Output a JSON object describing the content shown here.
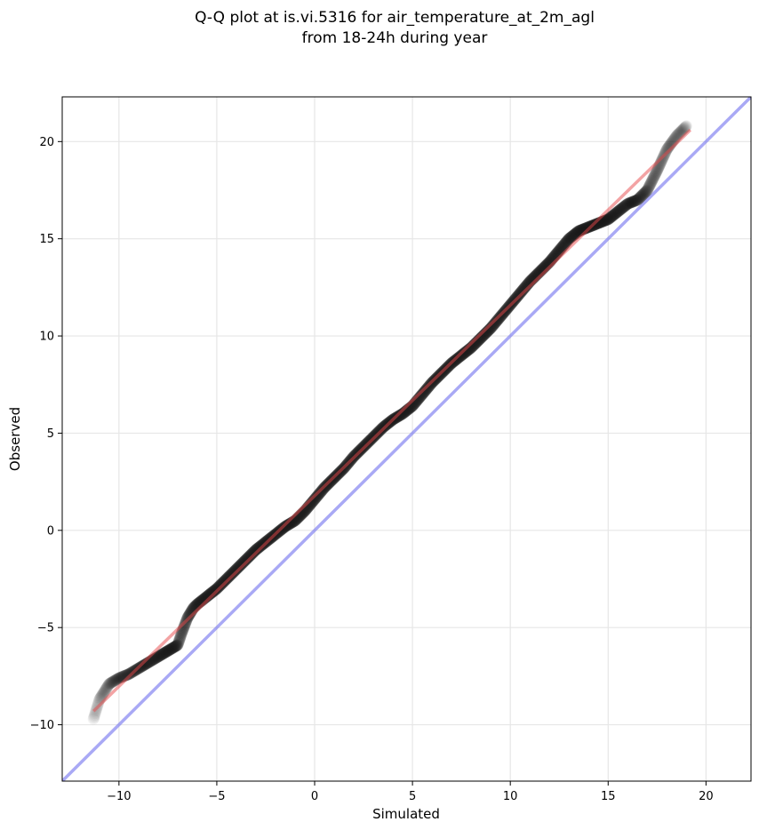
{
  "chart_data": {
    "type": "scatter",
    "title_lines": [
      "Q-Q plot at is.vi.5316 for air_temperature_at_2m_agl",
      "from 18-24h during year"
    ],
    "xlabel": "Simulated",
    "ylabel": "Observed",
    "xlim": [
      -12.9,
      22.3
    ],
    "ylim": [
      -12.9,
      22.3
    ],
    "xticks": [
      -10,
      -5,
      0,
      5,
      10,
      15,
      20
    ],
    "yticks": [
      -10,
      -5,
      0,
      5,
      10,
      15,
      20
    ],
    "xtick_labels": [
      "−10",
      "−5",
      "0",
      "5",
      "10",
      "15",
      "20"
    ],
    "ytick_labels": [
      "−10",
      "−5",
      "0",
      "5",
      "10",
      "15",
      "20"
    ],
    "grid": true,
    "colors": {
      "points": "#1a1a1a",
      "fit_line": "#e8474a",
      "identity_line": "#7b7bf0",
      "grid": "#e6e6e6"
    },
    "quantile_curve": [
      [
        -11.3,
        -9.7
      ],
      [
        -11.0,
        -8.7
      ],
      [
        -10.5,
        -7.9
      ],
      [
        -10.0,
        -7.6
      ],
      [
        -9.5,
        -7.4
      ],
      [
        -9.0,
        -7.1
      ],
      [
        -8.5,
        -6.8
      ],
      [
        -8.0,
        -6.5
      ],
      [
        -7.5,
        -6.2
      ],
      [
        -7.0,
        -5.9
      ],
      [
        -6.8,
        -5.3
      ],
      [
        -6.5,
        -4.5
      ],
      [
        -6.2,
        -4.0
      ],
      [
        -6.0,
        -3.8
      ],
      [
        -5.5,
        -3.4
      ],
      [
        -5.0,
        -3.0
      ],
      [
        -4.5,
        -2.5
      ],
      [
        -4.0,
        -2.0
      ],
      [
        -3.5,
        -1.5
      ],
      [
        -3.0,
        -1.0
      ],
      [
        -2.5,
        -0.6
      ],
      [
        -2.0,
        -0.2
      ],
      [
        -1.5,
        0.2
      ],
      [
        -1.0,
        0.5
      ],
      [
        -0.5,
        1.0
      ],
      [
        0.0,
        1.6
      ],
      [
        0.5,
        2.2
      ],
      [
        1.0,
        2.7
      ],
      [
        1.5,
        3.2
      ],
      [
        2.0,
        3.8
      ],
      [
        2.5,
        4.3
      ],
      [
        3.0,
        4.8
      ],
      [
        3.5,
        5.3
      ],
      [
        4.0,
        5.7
      ],
      [
        4.5,
        6.0
      ],
      [
        5.0,
        6.4
      ],
      [
        5.5,
        7.0
      ],
      [
        6.0,
        7.6
      ],
      [
        6.5,
        8.1
      ],
      [
        7.0,
        8.6
      ],
      [
        7.5,
        9.0
      ],
      [
        8.0,
        9.4
      ],
      [
        8.5,
        9.9
      ],
      [
        9.0,
        10.4
      ],
      [
        9.5,
        11.0
      ],
      [
        10.0,
        11.6
      ],
      [
        10.5,
        12.2
      ],
      [
        11.0,
        12.8
      ],
      [
        11.5,
        13.3
      ],
      [
        12.0,
        13.8
      ],
      [
        12.5,
        14.4
      ],
      [
        13.0,
        15.0
      ],
      [
        13.5,
        15.4
      ],
      [
        14.0,
        15.6
      ],
      [
        14.5,
        15.8
      ],
      [
        15.0,
        16.0
      ],
      [
        15.5,
        16.4
      ],
      [
        16.0,
        16.8
      ],
      [
        16.5,
        17.0
      ],
      [
        17.0,
        17.5
      ],
      [
        17.5,
        18.5
      ],
      [
        18.0,
        19.6
      ],
      [
        18.5,
        20.3
      ],
      [
        19.0,
        20.8
      ]
    ],
    "fit_line": {
      "start": [
        -11.3,
        -9.3
      ],
      "end": [
        19.2,
        20.6
      ]
    },
    "identity_line": {
      "start": [
        -12.9,
        -12.9
      ],
      "end": [
        22.3,
        22.3
      ]
    }
  }
}
